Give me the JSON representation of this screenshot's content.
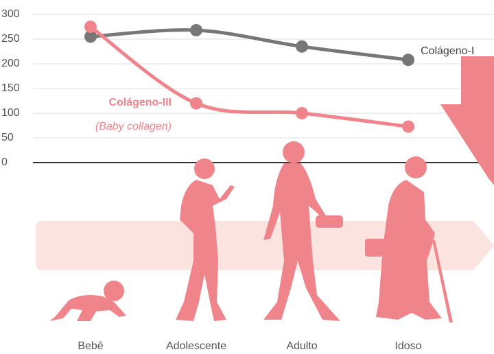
{
  "chart_data": {
    "type": "line",
    "categories": [
      "Bebê",
      "Adolescente",
      "Adulto",
      "Idoso"
    ],
    "series": [
      {
        "name": "Colágeno-I",
        "color": "#777777",
        "values": [
          255,
          268,
          235,
          208
        ]
      },
      {
        "name": "Colágeno-III",
        "color": "#f0848b",
        "values": [
          275,
          120,
          100,
          73
        ]
      }
    ],
    "annotations": [
      "(Baby collagen)"
    ],
    "ylim": [
      0,
      300
    ],
    "yticks": [
      0,
      50,
      100,
      150,
      200,
      250,
      300
    ],
    "grid": true
  }
}
